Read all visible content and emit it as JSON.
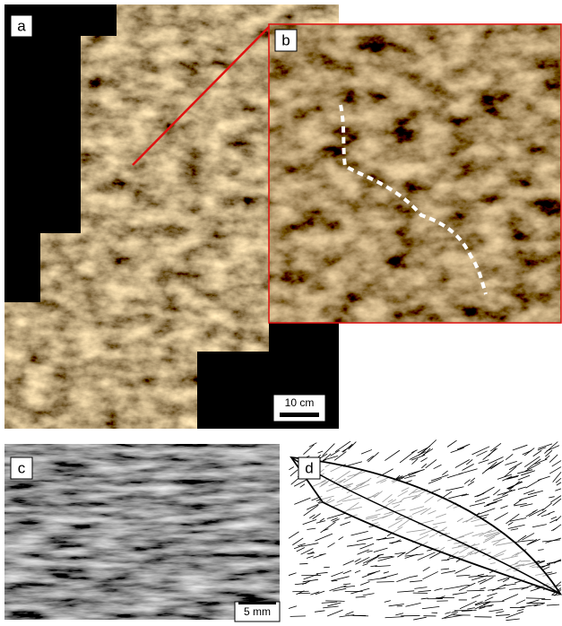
{
  "panels": [
    {
      "label": "a",
      "scale_bar": "10 cm"
    },
    {
      "label": "b"
    },
    {
      "label": "c",
      "scale_bar": "5 mm"
    },
    {
      "label": "d"
    }
  ]
}
